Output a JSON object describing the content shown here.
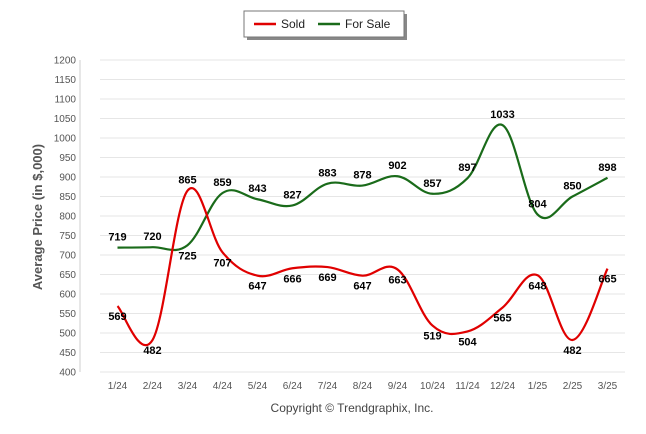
{
  "chart_data": {
    "type": "line",
    "categories": [
      "1/24",
      "2/24",
      "3/24",
      "4/24",
      "5/24",
      "6/24",
      "7/24",
      "8/24",
      "9/24",
      "10/24",
      "11/24",
      "12/24",
      "1/25",
      "2/25",
      "3/25"
    ],
    "series": [
      {
        "name": "Sold",
        "color": "#e00000",
        "values": [
          569,
          482,
          865,
          707,
          647,
          666,
          669,
          647,
          663,
          519,
          504,
          565,
          648,
          482,
          665
        ]
      },
      {
        "name": "For Sale",
        "color": "#1a6b1a",
        "values": [
          719,
          720,
          725,
          859,
          843,
          827,
          883,
          878,
          902,
          857,
          897,
          1033,
          804,
          850,
          898
        ]
      }
    ],
    "ylabel": "Average Price (in $,000)",
    "xlabel": "",
    "ylim": [
      400,
      1200
    ],
    "yticks": [
      400,
      450,
      500,
      550,
      600,
      650,
      700,
      750,
      800,
      850,
      900,
      950,
      1000,
      1050,
      1100,
      1150,
      1200
    ],
    "grid": true,
    "legend": "top-center"
  },
  "footer": {
    "text": "Copyright © Trendgraphix, Inc."
  }
}
